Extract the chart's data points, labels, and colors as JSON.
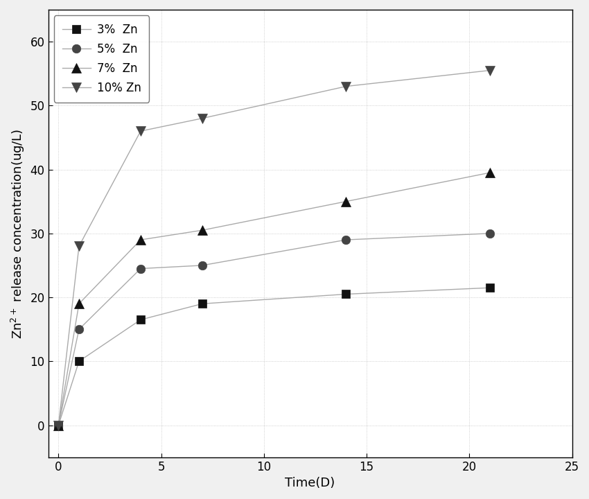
{
  "series": [
    {
      "label": "3%  Zn",
      "x": [
        0,
        1,
        4,
        7,
        14,
        21
      ],
      "y": [
        0,
        10,
        16.5,
        19,
        20.5,
        21.5
      ],
      "line_color": "#aaaaaa",
      "marker": "s",
      "marker_color": "#111111",
      "markersize": 9,
      "linewidth": 1.0
    },
    {
      "label": "5%  Zn",
      "x": [
        0,
        1,
        4,
        7,
        14,
        21
      ],
      "y": [
        0,
        15,
        24.5,
        25,
        29,
        30
      ],
      "line_color": "#aaaaaa",
      "marker": "o",
      "marker_color": "#444444",
      "markersize": 9,
      "linewidth": 1.0
    },
    {
      "label": "7%  Zn",
      "x": [
        0,
        1,
        4,
        7,
        14,
        21
      ],
      "y": [
        0,
        19,
        29,
        30.5,
        35,
        39.5
      ],
      "line_color": "#aaaaaa",
      "marker": "^",
      "marker_color": "#111111",
      "markersize": 10,
      "linewidth": 1.0
    },
    {
      "label": "10% Zn",
      "x": [
        0,
        1,
        4,
        7,
        14,
        21
      ],
      "y": [
        0,
        28,
        46,
        48,
        53,
        55.5
      ],
      "line_color": "#aaaaaa",
      "marker": "v",
      "marker_color": "#444444",
      "markersize": 10,
      "linewidth": 1.0
    }
  ],
  "xlabel": "Time(D)",
  "ylabel": "Zn$^{2+}$ release concentration(ug/L)",
  "xlim": [
    -0.5,
    24
  ],
  "ylim": [
    -5,
    65
  ],
  "xticks": [
    0,
    5,
    10,
    15,
    20,
    25
  ],
  "yticks": [
    0,
    10,
    20,
    30,
    40,
    50,
    60
  ],
  "background_color": "#ffffff",
  "fig_background_color": "#f0f0f0",
  "legend_loc": "upper left",
  "axis_fontsize": 13,
  "tick_fontsize": 12,
  "legend_fontsize": 12
}
